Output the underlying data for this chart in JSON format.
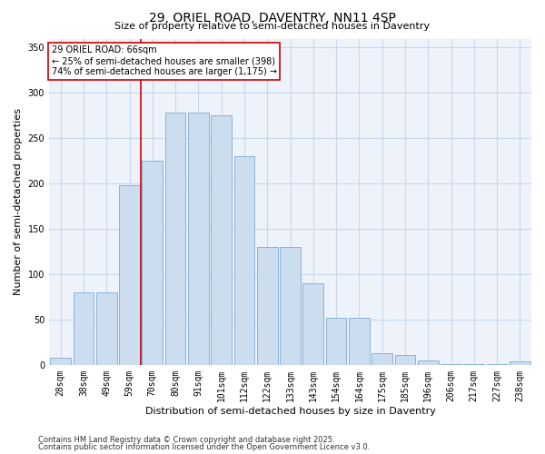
{
  "title_line1": "29, ORIEL ROAD, DAVENTRY, NN11 4SP",
  "title_line2": "Size of property relative to semi-detached houses in Daventry",
  "xlabel": "Distribution of semi-detached houses by size in Daventry",
  "ylabel": "Number of semi-detached properties",
  "categories": [
    "28sqm",
    "38sqm",
    "49sqm",
    "59sqm",
    "70sqm",
    "80sqm",
    "91sqm",
    "101sqm",
    "112sqm",
    "122sqm",
    "133sqm",
    "143sqm",
    "154sqm",
    "164sqm",
    "175sqm",
    "185sqm",
    "196sqm",
    "206sqm",
    "217sqm",
    "227sqm",
    "238sqm"
  ],
  "values": [
    8,
    80,
    80,
    198,
    225,
    278,
    278,
    275,
    230,
    130,
    130,
    90,
    52,
    52,
    13,
    11,
    5,
    1,
    1,
    1,
    4
  ],
  "bar_color": "#ccddf0",
  "bar_edge_color": "#8ab4d8",
  "grid_color": "#c8d8ec",
  "background_color": "#eef3fb",
  "vline_color": "#cc0000",
  "vline_bar_index": 4,
  "annotation_text": "29 ORIEL ROAD: 66sqm\n← 25% of semi-detached houses are smaller (398)\n74% of semi-detached houses are larger (1,175) →",
  "annotation_box_color": "#ffffff",
  "annotation_box_edge": "#cc0000",
  "footnote1": "Contains HM Land Registry data © Crown copyright and database right 2025.",
  "footnote2": "Contains public sector information licensed under the Open Government Licence v3.0.",
  "ylim": [
    0,
    360
  ],
  "yticks": [
    0,
    50,
    100,
    150,
    200,
    250,
    300,
    350
  ],
  "title_fontsize": 10,
  "subtitle_fontsize": 8,
  "axis_label_fontsize": 8,
  "tick_fontsize": 7,
  "annotation_fontsize": 7,
  "footnote_fontsize": 6
}
